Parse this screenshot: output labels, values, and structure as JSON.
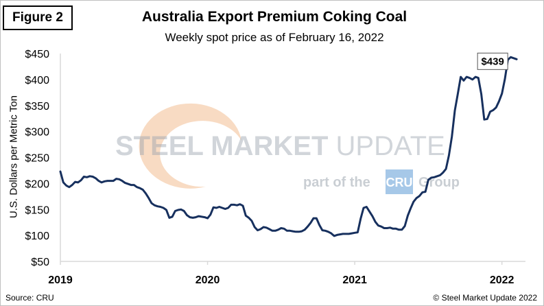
{
  "figure_label": "Figure 2",
  "watermark": {
    "brand_bold": "STEEL MARKET",
    "brand_light": " UPDATE",
    "part_of": "part of the",
    "cru": "CRU",
    "group": "Group"
  },
  "footer": {
    "source": "Source: CRU",
    "copyright": "© Steel Market Update 2022"
  },
  "colors": {
    "line": "#17305e",
    "axis": "#d9d9d9",
    "watermark_orange": "#f0b07a",
    "cru_badge": "#5c9bd5"
  },
  "chart_data": {
    "type": "line",
    "title": "Australia Export Premium Coking Coal",
    "subtitle": "Weekly spot price as of February 16, 2022",
    "xlabel": "",
    "ylabel": "U.S. Dollars per Metric Ton",
    "ylim": [
      50,
      450
    ],
    "yticks": [
      50,
      100,
      150,
      200,
      250,
      300,
      350,
      400,
      450
    ],
    "ytick_labels": [
      "$50",
      "$100",
      "$150",
      "$200",
      "$250",
      "$300",
      "$350",
      "$400",
      "$450"
    ],
    "xlim": [
      2019.0,
      2022.16
    ],
    "xticks": [
      2019,
      2020,
      2021,
      2022
    ],
    "xtick_labels": [
      "2019",
      "2020",
      "2021",
      "2022"
    ],
    "grid": false,
    "legend": "none",
    "annotation": {
      "text": "$439",
      "x": 2022.1,
      "y": 439
    },
    "series": [
      {
        "values": [
          [
            2019.0,
            223
          ],
          [
            2019.02,
            202
          ],
          [
            2019.04,
            196
          ],
          [
            2019.06,
            193
          ],
          [
            2019.08,
            197
          ],
          [
            2019.1,
            203
          ],
          [
            2019.12,
            202
          ],
          [
            2019.14,
            206
          ],
          [
            2019.16,
            213
          ],
          [
            2019.18,
            212
          ],
          [
            2019.2,
            214
          ],
          [
            2019.22,
            213
          ],
          [
            2019.24,
            210
          ],
          [
            2019.26,
            205
          ],
          [
            2019.28,
            202
          ],
          [
            2019.3,
            204
          ],
          [
            2019.32,
            205
          ],
          [
            2019.34,
            205
          ],
          [
            2019.36,
            205
          ],
          [
            2019.38,
            209
          ],
          [
            2019.4,
            208
          ],
          [
            2019.42,
            205
          ],
          [
            2019.44,
            201
          ],
          [
            2019.46,
            199
          ],
          [
            2019.48,
            197
          ],
          [
            2019.5,
            197
          ],
          [
            2019.52,
            193
          ],
          [
            2019.54,
            191
          ],
          [
            2019.56,
            188
          ],
          [
            2019.58,
            181
          ],
          [
            2019.6,
            172
          ],
          [
            2019.62,
            162
          ],
          [
            2019.64,
            158
          ],
          [
            2019.66,
            156
          ],
          [
            2019.68,
            155
          ],
          [
            2019.7,
            153
          ],
          [
            2019.72,
            149
          ],
          [
            2019.74,
            134
          ],
          [
            2019.76,
            136
          ],
          [
            2019.78,
            147
          ],
          [
            2019.8,
            149
          ],
          [
            2019.82,
            150
          ],
          [
            2019.84,
            147
          ],
          [
            2019.86,
            139
          ],
          [
            2019.88,
            135
          ],
          [
            2019.9,
            134
          ],
          [
            2019.92,
            135
          ],
          [
            2019.94,
            137
          ],
          [
            2019.96,
            136
          ],
          [
            2019.98,
            135
          ],
          [
            2020.0,
            133
          ],
          [
            2020.02,
            140
          ],
          [
            2020.04,
            154
          ],
          [
            2020.06,
            153
          ],
          [
            2020.08,
            155
          ],
          [
            2020.1,
            153
          ],
          [
            2020.12,
            151
          ],
          [
            2020.14,
            153
          ],
          [
            2020.16,
            159
          ],
          [
            2020.18,
            159
          ],
          [
            2020.2,
            158
          ],
          [
            2020.22,
            160
          ],
          [
            2020.24,
            157
          ],
          [
            2020.26,
            138
          ],
          [
            2020.28,
            134
          ],
          [
            2020.3,
            128
          ],
          [
            2020.32,
            116
          ],
          [
            2020.34,
            110
          ],
          [
            2020.36,
            112
          ],
          [
            2020.38,
            116
          ],
          [
            2020.4,
            115
          ],
          [
            2020.42,
            112
          ],
          [
            2020.44,
            109
          ],
          [
            2020.46,
            109
          ],
          [
            2020.48,
            111
          ],
          [
            2020.5,
            114
          ],
          [
            2020.52,
            113
          ],
          [
            2020.54,
            109
          ],
          [
            2020.56,
            109
          ],
          [
            2020.58,
            108
          ],
          [
            2020.6,
            107
          ],
          [
            2020.62,
            107
          ],
          [
            2020.64,
            108
          ],
          [
            2020.66,
            111
          ],
          [
            2020.68,
            117
          ],
          [
            2020.7,
            124
          ],
          [
            2020.72,
            133
          ],
          [
            2020.74,
            133
          ],
          [
            2020.76,
            120
          ],
          [
            2020.78,
            110
          ],
          [
            2020.8,
            109
          ],
          [
            2020.82,
            107
          ],
          [
            2020.84,
            104
          ],
          [
            2020.86,
            99
          ],
          [
            2020.88,
            101
          ],
          [
            2020.9,
            102
          ],
          [
            2020.92,
            103
          ],
          [
            2020.94,
            103
          ],
          [
            2020.96,
            103
          ],
          [
            2020.98,
            104
          ],
          [
            2021.0,
            105
          ],
          [
            2021.02,
            106
          ],
          [
            2021.04,
            132
          ],
          [
            2021.06,
            153
          ],
          [
            2021.08,
            155
          ],
          [
            2021.1,
            146
          ],
          [
            2021.12,
            137
          ],
          [
            2021.14,
            126
          ],
          [
            2021.16,
            119
          ],
          [
            2021.18,
            117
          ],
          [
            2021.2,
            114
          ],
          [
            2021.22,
            114
          ],
          [
            2021.24,
            115
          ],
          [
            2021.26,
            113
          ],
          [
            2021.28,
            113
          ],
          [
            2021.3,
            111
          ],
          [
            2021.32,
            111
          ],
          [
            2021.34,
            118
          ],
          [
            2021.36,
            138
          ],
          [
            2021.38,
            152
          ],
          [
            2021.4,
            165
          ],
          [
            2021.42,
            172
          ],
          [
            2021.44,
            176
          ],
          [
            2021.46,
            183
          ],
          [
            2021.48,
            184
          ],
          [
            2021.5,
            207
          ],
          [
            2021.52,
            211
          ],
          [
            2021.54,
            212
          ],
          [
            2021.56,
            214
          ],
          [
            2021.58,
            216
          ],
          [
            2021.6,
            221
          ],
          [
            2021.62,
            228
          ],
          [
            2021.64,
            254
          ],
          [
            2021.66,
            290
          ],
          [
            2021.68,
            340
          ],
          [
            2021.7,
            372
          ],
          [
            2021.72,
            405
          ],
          [
            2021.74,
            398
          ],
          [
            2021.76,
            405
          ],
          [
            2021.78,
            403
          ],
          [
            2021.8,
            400
          ],
          [
            2021.82,
            405
          ],
          [
            2021.84,
            403
          ],
          [
            2021.86,
            372
          ],
          [
            2021.88,
            323
          ],
          [
            2021.9,
            324
          ],
          [
            2021.92,
            338
          ],
          [
            2021.94,
            341
          ],
          [
            2021.96,
            346
          ],
          [
            2021.98,
            358
          ],
          [
            2022.0,
            373
          ],
          [
            2022.02,
            401
          ],
          [
            2022.04,
            438
          ],
          [
            2022.06,
            443
          ],
          [
            2022.08,
            441
          ],
          [
            2022.1,
            439
          ]
        ]
      }
    ]
  }
}
